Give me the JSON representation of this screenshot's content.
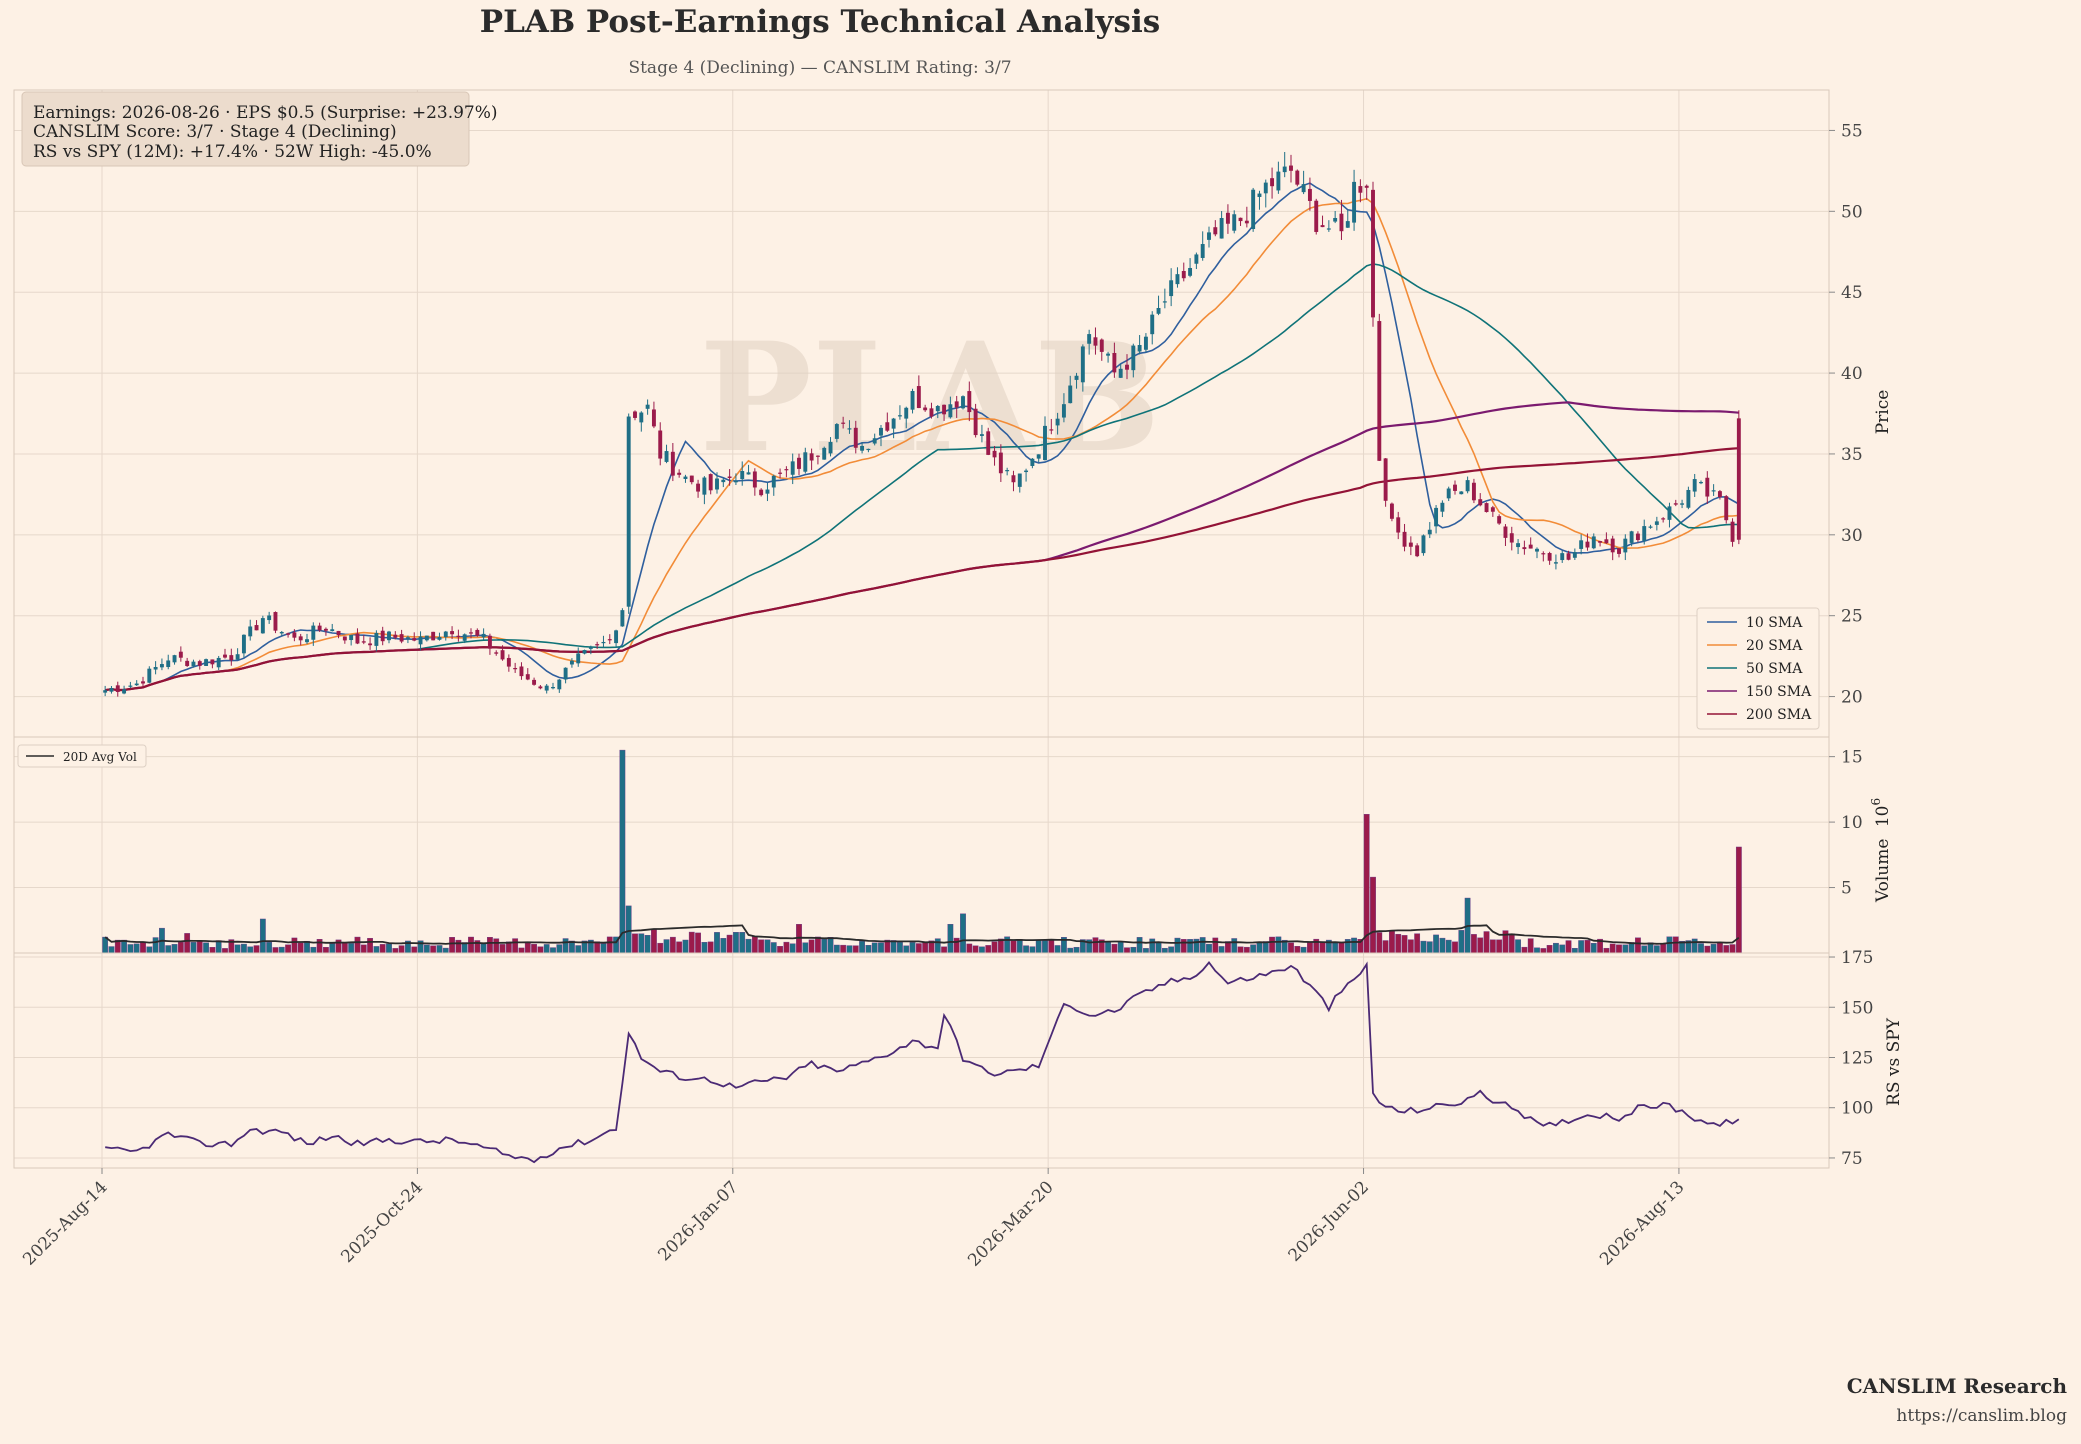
{
  "header": {
    "title": "PLAB Post-Earnings Technical Analysis",
    "subtitle": "Stage 4 (Declining) — CANSLIM Rating: 3/7"
  },
  "watermark": "PLAB",
  "info_box": {
    "line1": "Earnings: 2026-08-26 · EPS $0.5 (Surprise: +23.97%)",
    "line2": "CANSLIM Score: 3/7 · Stage 4 (Declining)",
    "line3": "RS vs SPY (12M): +17.4% · 52W High: -45.0%"
  },
  "footer": {
    "brand": "CANSLIM Research",
    "url": "https://canslim.blog"
  },
  "colors": {
    "background": "#fdf1e5",
    "grid": "#e6d8cb",
    "up": "#1f6f86",
    "down": "#9b1b4b",
    "sma10": "#2f5f9e",
    "sma20": "#f28c38",
    "sma50": "#0f7378",
    "sma150": "#7b1a6f",
    "sma200": "#931336",
    "avgvol": "#2b2b2b",
    "rs": "#4b2a75"
  },
  "chart_data": [
    {
      "type": "candlestick",
      "panel": "price",
      "ylabel": "Price",
      "ylim": [
        17.5,
        57.5
      ],
      "yticks": [
        20,
        25,
        30,
        35,
        40,
        45,
        50,
        55
      ],
      "x_ticklabels": [
        "2025-Aug-14",
        "2025-Oct-24",
        "2026-Jan-07",
        "2026-Mar-20",
        "2026-Jun-02",
        "2026-Aug-13"
      ],
      "x_tick_sessions": [
        0,
        50,
        100,
        150,
        200,
        250
      ],
      "sessions": 260,
      "close_anchors": [
        [
          0,
          20.4
        ],
        [
          5,
          20.8
        ],
        [
          10,
          22.4
        ],
        [
          15,
          22.1
        ],
        [
          20,
          22.5
        ],
        [
          25,
          24.9
        ],
        [
          30,
          23.5
        ],
        [
          35,
          24.3
        ],
        [
          40,
          23.4
        ],
        [
          45,
          23.7
        ],
        [
          50,
          23.5
        ],
        [
          55,
          24.2
        ],
        [
          60,
          23.5
        ],
        [
          65,
          21.5
        ],
        [
          70,
          20.5
        ],
        [
          75,
          22.3
        ],
        [
          80,
          23.5
        ],
        [
          82,
          25.5
        ],
        [
          83,
          37.5
        ],
        [
          86,
          37.8
        ],
        [
          88,
          35.0
        ],
        [
          92,
          33.5
        ],
        [
          96,
          32.8
        ],
        [
          100,
          33.8
        ],
        [
          104,
          33.0
        ],
        [
          108,
          33.8
        ],
        [
          112,
          35.0
        ],
        [
          116,
          36.8
        ],
        [
          120,
          35.5
        ],
        [
          124,
          37.0
        ],
        [
          128,
          38.5
        ],
        [
          132,
          37.8
        ],
        [
          136,
          38.6
        ],
        [
          140,
          35.0
        ],
        [
          144,
          33.0
        ],
        [
          148,
          35.5
        ],
        [
          152,
          38.5
        ],
        [
          156,
          42.5
        ],
        [
          160,
          40.0
        ],
        [
          164,
          41.5
        ],
        [
          168,
          44.5
        ],
        [
          172,
          46.5
        ],
        [
          176,
          48.5
        ],
        [
          180,
          49.5
        ],
        [
          184,
          51.5
        ],
        [
          188,
          52.5
        ],
        [
          192,
          49.5
        ],
        [
          196,
          48.5
        ],
        [
          198,
          51.5
        ],
        [
          200,
          52.0
        ],
        [
          202,
          34.8
        ],
        [
          204,
          30.5
        ],
        [
          208,
          29.0
        ],
        [
          212,
          32.2
        ],
        [
          216,
          33.0
        ],
        [
          220,
          31.0
        ],
        [
          224,
          29.5
        ],
        [
          228,
          29.0
        ],
        [
          232,
          28.5
        ],
        [
          236,
          30.0
        ],
        [
          240,
          29.2
        ],
        [
          244,
          30.5
        ],
        [
          248,
          31.5
        ],
        [
          252,
          33.0
        ],
        [
          256,
          32.0
        ],
        [
          258,
          30.0
        ],
        [
          259,
          30.0
        ]
      ],
      "volume_spikes": [
        [
          82,
          15.5
        ],
        [
          83,
          3.6
        ],
        [
          200,
          10.6
        ],
        [
          201,
          5.8
        ],
        [
          259,
          8.1
        ],
        [
          136,
          3.0
        ],
        [
          134,
          2.2
        ],
        [
          25,
          2.6
        ],
        [
          9,
          1.9
        ],
        [
          13,
          1.5
        ],
        [
          87,
          1.8
        ],
        [
          110,
          2.2
        ],
        [
          216,
          4.2
        ]
      ],
      "sma_legend": [
        "10 SMA",
        "20 SMA",
        "50 SMA",
        "150 SMA",
        "200 SMA"
      ],
      "sma_periods": [
        10,
        20,
        50,
        150,
        200
      ],
      "legend_position": "lower right"
    },
    {
      "type": "bar",
      "panel": "volume",
      "ylabel": "Volume",
      "ylabel_exponent": "10",
      "ylabel_power": "6",
      "ylim": [
        0,
        16.5
      ],
      "yticks": [
        5,
        10,
        15
      ],
      "series": [
        {
          "name": "20D Avg Vol",
          "type": "line"
        }
      ],
      "legend_position": "upper left"
    },
    {
      "type": "line",
      "panel": "rs",
      "ylabel": "RS vs SPY",
      "ylim": [
        70,
        177
      ],
      "yticks": [
        75,
        100,
        125,
        150,
        175
      ],
      "series": [
        {
          "anchors": [
            [
              0,
              79
            ],
            [
              5,
              78
            ],
            [
              10,
              87
            ],
            [
              15,
              82
            ],
            [
              20,
              82
            ],
            [
              23,
              89
            ],
            [
              28,
              88
            ],
            [
              32,
              82
            ],
            [
              36,
              86
            ],
            [
              40,
              82
            ],
            [
              45,
              84
            ],
            [
              50,
              83
            ],
            [
              55,
              84
            ],
            [
              60,
              80
            ],
            [
              64,
              76
            ],
            [
              68,
              74
            ],
            [
              72,
              80
            ],
            [
              77,
              84
            ],
            [
              81,
              90
            ],
            [
              83,
              137
            ],
            [
              85,
              125
            ],
            [
              88,
              118
            ],
            [
              92,
              115
            ],
            [
              96,
              114
            ],
            [
              100,
              110
            ],
            [
              104,
              113
            ],
            [
              108,
              115
            ],
            [
              112,
              122
            ],
            [
              116,
              118
            ],
            [
              120,
              122
            ],
            [
              124,
              127
            ],
            [
              128,
              133
            ],
            [
              132,
              130
            ],
            [
              133,
              147
            ],
            [
              136,
              125
            ],
            [
              140,
              117
            ],
            [
              144,
              118
            ],
            [
              148,
              121
            ],
            [
              150,
              135
            ],
            [
              152,
              153
            ],
            [
              156,
              146
            ],
            [
              160,
              148
            ],
            [
              164,
              156
            ],
            [
              168,
              162
            ],
            [
              172,
              165
            ],
            [
              175,
              172
            ],
            [
              178,
              162
            ],
            [
              182,
              165
            ],
            [
              186,
              168
            ],
            [
              188,
              171
            ],
            [
              192,
              157
            ],
            [
              194,
              150
            ],
            [
              196,
              158
            ],
            [
              198,
              163
            ],
            [
              200,
              171
            ],
            [
              201,
              107
            ],
            [
              203,
              100
            ],
            [
              206,
              98
            ],
            [
              210,
              100
            ],
            [
              214,
              102
            ],
            [
              218,
              107
            ],
            [
              222,
              101
            ],
            [
              224,
              99
            ],
            [
              226,
              94
            ],
            [
              228,
              90
            ],
            [
              232,
              94
            ],
            [
              236,
              97
            ],
            [
              240,
              95
            ],
            [
              244,
              101
            ],
            [
              248,
              101
            ],
            [
              252,
              95
            ],
            [
              256,
              91
            ],
            [
              259,
              95
            ]
          ]
        }
      ]
    }
  ]
}
